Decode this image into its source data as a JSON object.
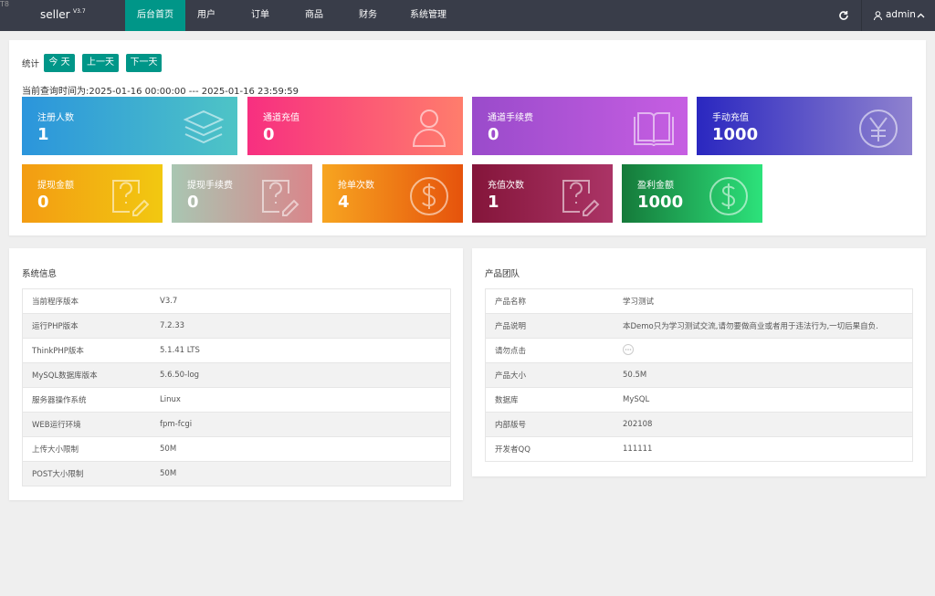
{
  "nav": {
    "corner": "T8",
    "brand": "seller",
    "version": "V3.7",
    "items": [
      "后台首页",
      "用户",
      "订单",
      "商品",
      "财务",
      "系统管理"
    ],
    "user": "admin"
  },
  "stats": {
    "label": "统计",
    "buttons": [
      "今 天",
      "上一天",
      "下一天"
    ],
    "query_time": "当前查询时间为:2025-01-16 00:00:00 --- 2025-01-16 23:59:59",
    "cards": [
      {
        "label": "注册人数",
        "value": 1
      },
      {
        "label": "通道充值",
        "value": 0
      },
      {
        "label": "通道手续费",
        "value": 0
      },
      {
        "label": "手动充值",
        "value": 1000
      },
      {
        "label": "提现金额",
        "value": 0
      },
      {
        "label": "提现手续费",
        "value": 0
      },
      {
        "label": "抢单次数",
        "value": 4
      },
      {
        "label": "充值次数",
        "value": 1
      },
      {
        "label": "盈利金额",
        "value": 1000
      }
    ]
  },
  "system_info": {
    "title": "系统信息",
    "rows": [
      {
        "label": "当前程序版本",
        "value": "V3.7"
      },
      {
        "label": "运行PHP版本",
        "value": "7.2.33"
      },
      {
        "label": "ThinkPHP版本",
        "value": "5.1.41 LTS"
      },
      {
        "label": "MySQL数据库版本",
        "value": "5.6.50-log"
      },
      {
        "label": "服务器操作系统",
        "value": "Linux"
      },
      {
        "label": "WEB运行环境",
        "value": "fpm-fcgi"
      },
      {
        "label": "上传大小限制",
        "value": "50M"
      },
      {
        "label": "POST大小限制",
        "value": "50M"
      }
    ]
  },
  "product_team": {
    "title": "产品团队",
    "rows": [
      {
        "label": "产品名称",
        "value": "学习测试"
      },
      {
        "label": "产品说明",
        "value": "本Demo只为学习测试交流,请勿要做商业或者用于违法行为,一切后果自负."
      },
      {
        "label": "请勿点击"
      },
      {
        "label": "产品大小",
        "value": "50.5M"
      },
      {
        "label": "数据库",
        "value": "MySQL"
      },
      {
        "label": "内部版号",
        "value": "202108"
      },
      {
        "label": "开发者QQ",
        "value": "111111"
      }
    ]
  }
}
